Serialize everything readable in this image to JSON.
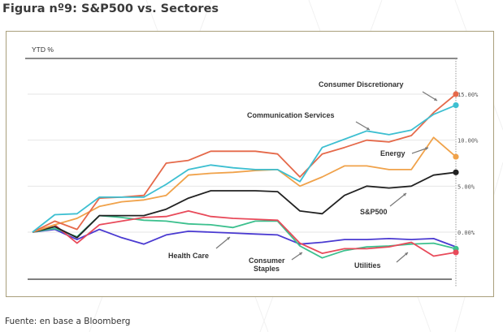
{
  "header": {
    "title": "Figura nº9: S&P500 vs. Sectores"
  },
  "footer": {
    "source": "Fuente: en base a Bloomberg"
  },
  "colors": {
    "consumer_discretionary": "#e5694a",
    "communication_services": "#3dbfd1",
    "energy": "#f0a24a",
    "sp500": "#222222",
    "health_care": "#4a3ad1",
    "consumer_staples": "#3cc08e",
    "utilities": "#e84a5a",
    "grid": "#e6e6e6",
    "axis": "#777777",
    "frame": "#a99f7c",
    "annotation_arrow": "#777777"
  },
  "chart_data": {
    "type": "line",
    "title": "S&P500 vs. Sectores",
    "ylabel": "YTD %",
    "xlabel": "",
    "ylim": [
      -4.5,
      17.5
    ],
    "yticks": [
      0,
      5,
      10,
      15
    ],
    "ytick_labels": [
      "0.00%",
      "5.00%",
      "10.00%",
      "15.00%"
    ],
    "grid": true,
    "legend": "inline-annotations",
    "x": [
      0,
      1,
      2,
      3,
      4,
      5,
      6,
      7,
      8,
      9,
      10,
      11,
      12,
      13,
      14,
      15,
      16,
      17,
      18,
      19
    ],
    "series": [
      {
        "key": "consumer_discretionary",
        "name": "Consumer Discretionary",
        "endpoint_marker": true,
        "values": [
          0,
          1.2,
          0.3,
          3.7,
          3.8,
          4.0,
          7.5,
          7.8,
          8.8,
          8.8,
          8.8,
          8.5,
          6.0,
          8.5,
          9.2,
          10.0,
          9.8,
          10.5,
          13.0,
          15.0
        ]
      },
      {
        "key": "communication_services",
        "name": "Communication Services",
        "endpoint_marker": true,
        "values": [
          0,
          1.9,
          2.0,
          3.8,
          3.8,
          3.8,
          5.2,
          6.8,
          7.3,
          7.0,
          6.8,
          6.8,
          5.5,
          9.2,
          10.1,
          11.0,
          10.6,
          11.1,
          12.8,
          13.8
        ]
      },
      {
        "key": "energy",
        "name": "Energy",
        "endpoint_marker": true,
        "values": [
          0,
          0.8,
          1.5,
          2.8,
          3.3,
          3.5,
          4.0,
          6.2,
          6.4,
          6.5,
          6.7,
          6.8,
          5.0,
          6.0,
          7.2,
          7.2,
          6.8,
          6.8,
          10.3,
          8.2
        ]
      },
      {
        "key": "sp500",
        "name": "S&P500",
        "endpoint_marker": true,
        "values": [
          0,
          0.6,
          -0.6,
          1.8,
          1.8,
          1.8,
          2.5,
          3.7,
          4.5,
          4.5,
          4.5,
          4.4,
          2.3,
          2.0,
          4.0,
          5.0,
          4.8,
          5.0,
          6.2,
          6.5
        ]
      },
      {
        "key": "health_care",
        "name": "Health Care",
        "endpoint_marker": false,
        "values": [
          0,
          0.3,
          -0.8,
          0.3,
          -0.6,
          -1.3,
          -0.3,
          0.1,
          0.0,
          -0.1,
          -0.2,
          -0.3,
          -1.3,
          -1.1,
          -0.8,
          -0.8,
          -0.7,
          -0.8,
          -0.7,
          -1.6
        ]
      },
      {
        "key": "consumer_staples",
        "name": "Consumer Staples",
        "endpoint_marker": true,
        "values": [
          0,
          0.4,
          -0.5,
          1.8,
          1.6,
          1.3,
          1.2,
          0.9,
          0.8,
          0.5,
          1.2,
          1.2,
          -1.5,
          -2.8,
          -2.0,
          -1.6,
          -1.5,
          -1.3,
          -1.2,
          -1.8
        ]
      },
      {
        "key": "utilities",
        "name": "Utilities",
        "endpoint_marker": true,
        "values": [
          0,
          0.8,
          -1.2,
          0.8,
          1.2,
          1.6,
          1.7,
          2.3,
          1.7,
          1.5,
          1.4,
          1.3,
          -1.2,
          -2.3,
          -1.8,
          -1.8,
          -1.6,
          -1.1,
          -2.6,
          -2.2
        ]
      }
    ],
    "annotations": [
      {
        "key": "consumer_discretionary",
        "text": "Consumer Discretionary"
      },
      {
        "key": "communication_services",
        "text": "Communication Services"
      },
      {
        "key": "energy",
        "text": "Energy"
      },
      {
        "key": "sp500",
        "text": "S&P500"
      },
      {
        "key": "health_care",
        "text": "Health Care"
      },
      {
        "key": "consumer_staples",
        "text": "Consumer Staples"
      },
      {
        "key": "utilities",
        "text": "Utilities"
      }
    ]
  }
}
